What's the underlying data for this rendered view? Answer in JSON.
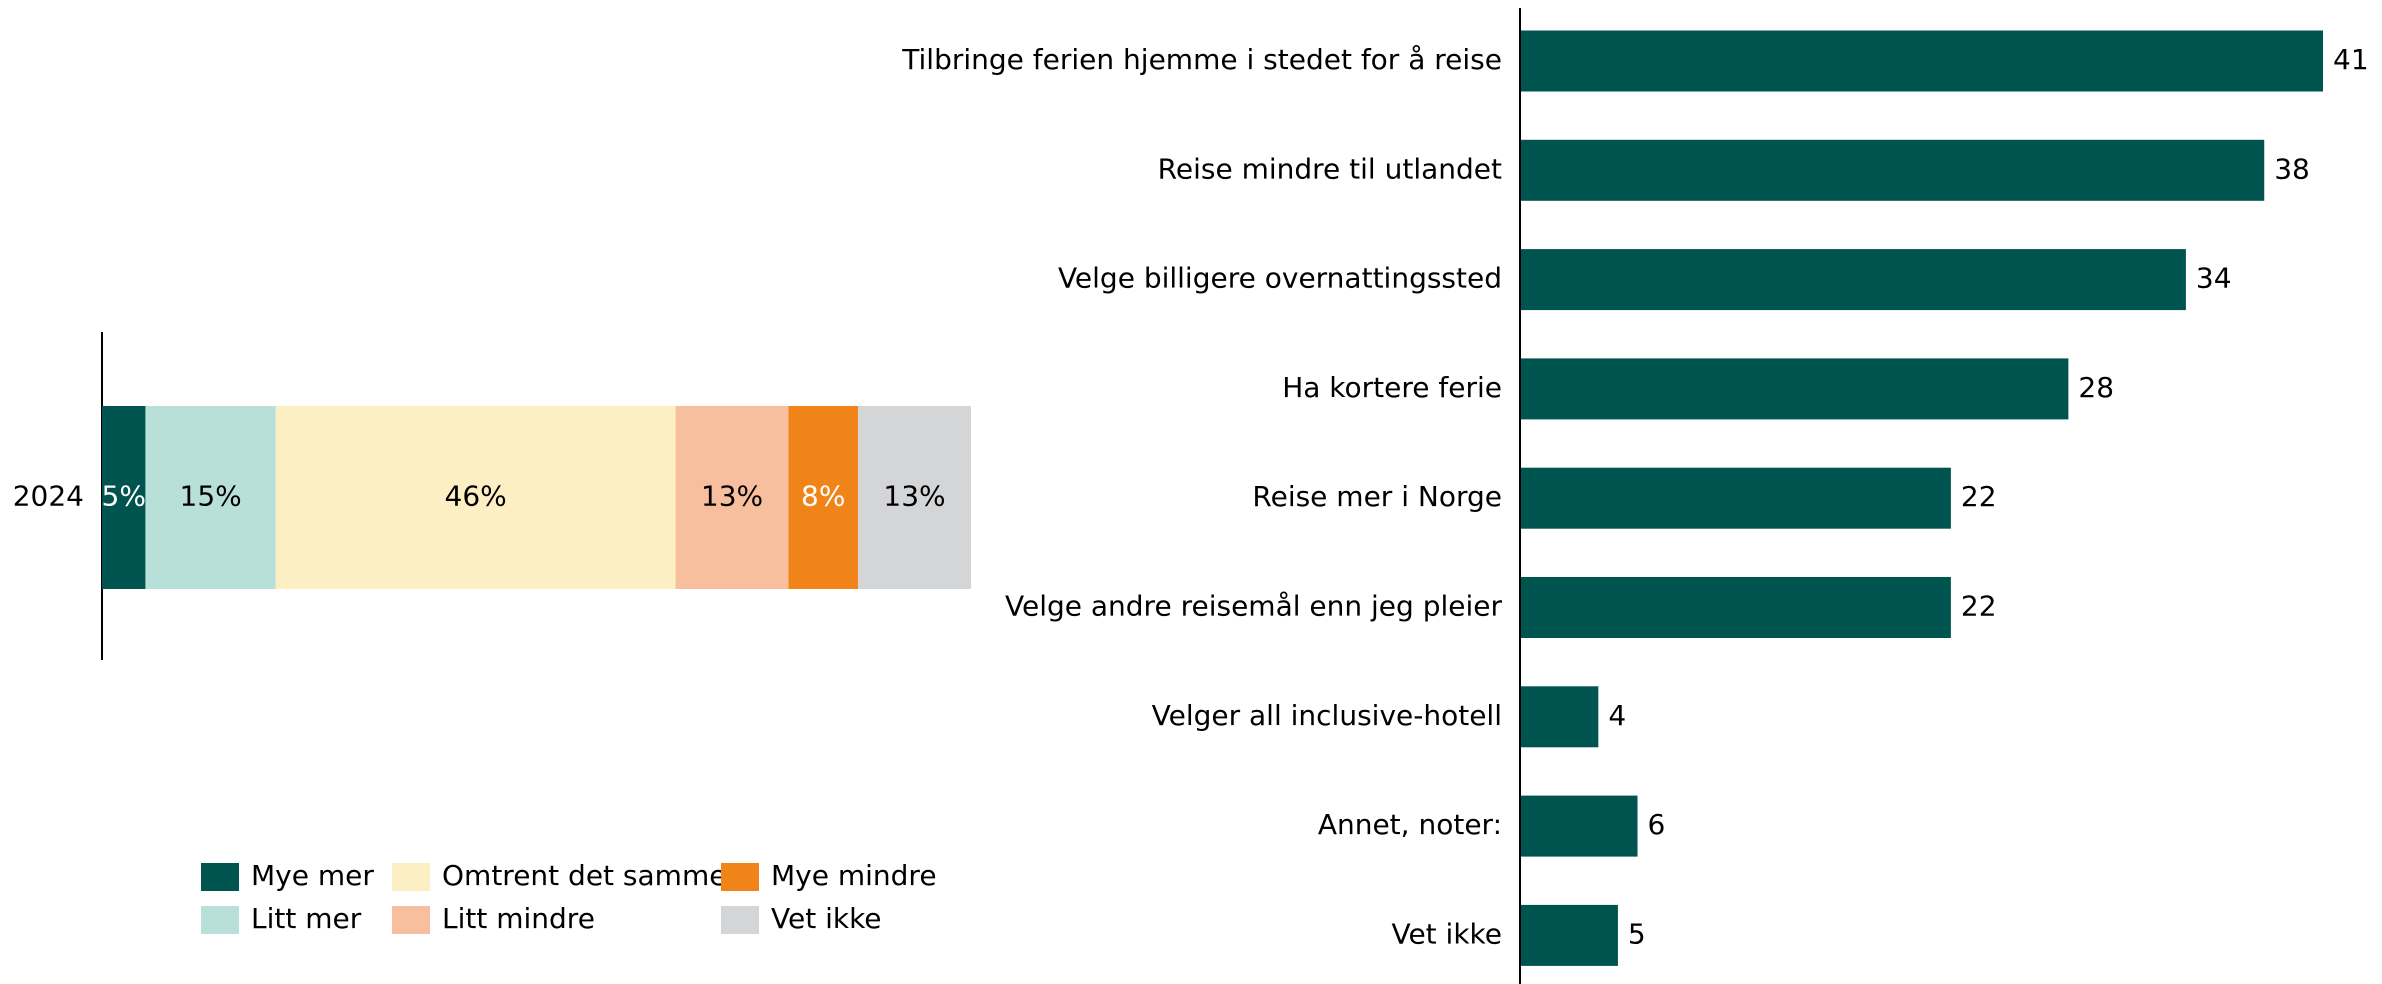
{
  "chart_data": [
    {
      "type": "stacked-bar",
      "categories": [
        "2024"
      ],
      "xlim": [
        0,
        100
      ],
      "legend": "bottom",
      "series": [
        {
          "name": "Mye mer",
          "color": "#00544f",
          "label_color": "#ffffff",
          "values": [
            5
          ],
          "value_labels": [
            "5%"
          ]
        },
        {
          "name": "Litt mer",
          "color": "#b8e0d8",
          "label_color": "#000000",
          "values": [
            15
          ],
          "value_labels": [
            "15%"
          ]
        },
        {
          "name": "Omtrent det samme",
          "color": "#fdefc4",
          "label_color": "#000000",
          "values": [
            46
          ],
          "value_labels": [
            "46%"
          ]
        },
        {
          "name": "Litt mindre",
          "color": "#f8bf9e",
          "label_color": "#000000",
          "values": [
            13
          ],
          "value_labels": [
            "13%"
          ]
        },
        {
          "name": "Mye mindre",
          "color": "#f08419",
          "label_color": "#ffffff",
          "values": [
            8
          ],
          "value_labels": [
            "8%"
          ]
        },
        {
          "name": "Vet ikke",
          "color": "#d4d5d6",
          "label_color": "#000000",
          "values": [
            13
          ],
          "value_labels": [
            "13%"
          ]
        }
      ]
    },
    {
      "type": "bar",
      "categories": [
        "Tilbringe ferien hjemme i stedet for å reise",
        "Reise mindre til utlandet",
        "Velge billigere overnattingssted",
        "Ha kortere ferie",
        "Reise mer i Norge",
        "Velge andre reisemål enn jeg pleier",
        "Velger all inclusive-hotell",
        "Annet, noter:",
        "Vet ikke"
      ],
      "values": [
        41,
        38,
        34,
        28,
        22,
        22,
        4,
        6,
        5
      ],
      "color": "#00544f",
      "xlim": [
        0,
        41
      ]
    }
  ]
}
